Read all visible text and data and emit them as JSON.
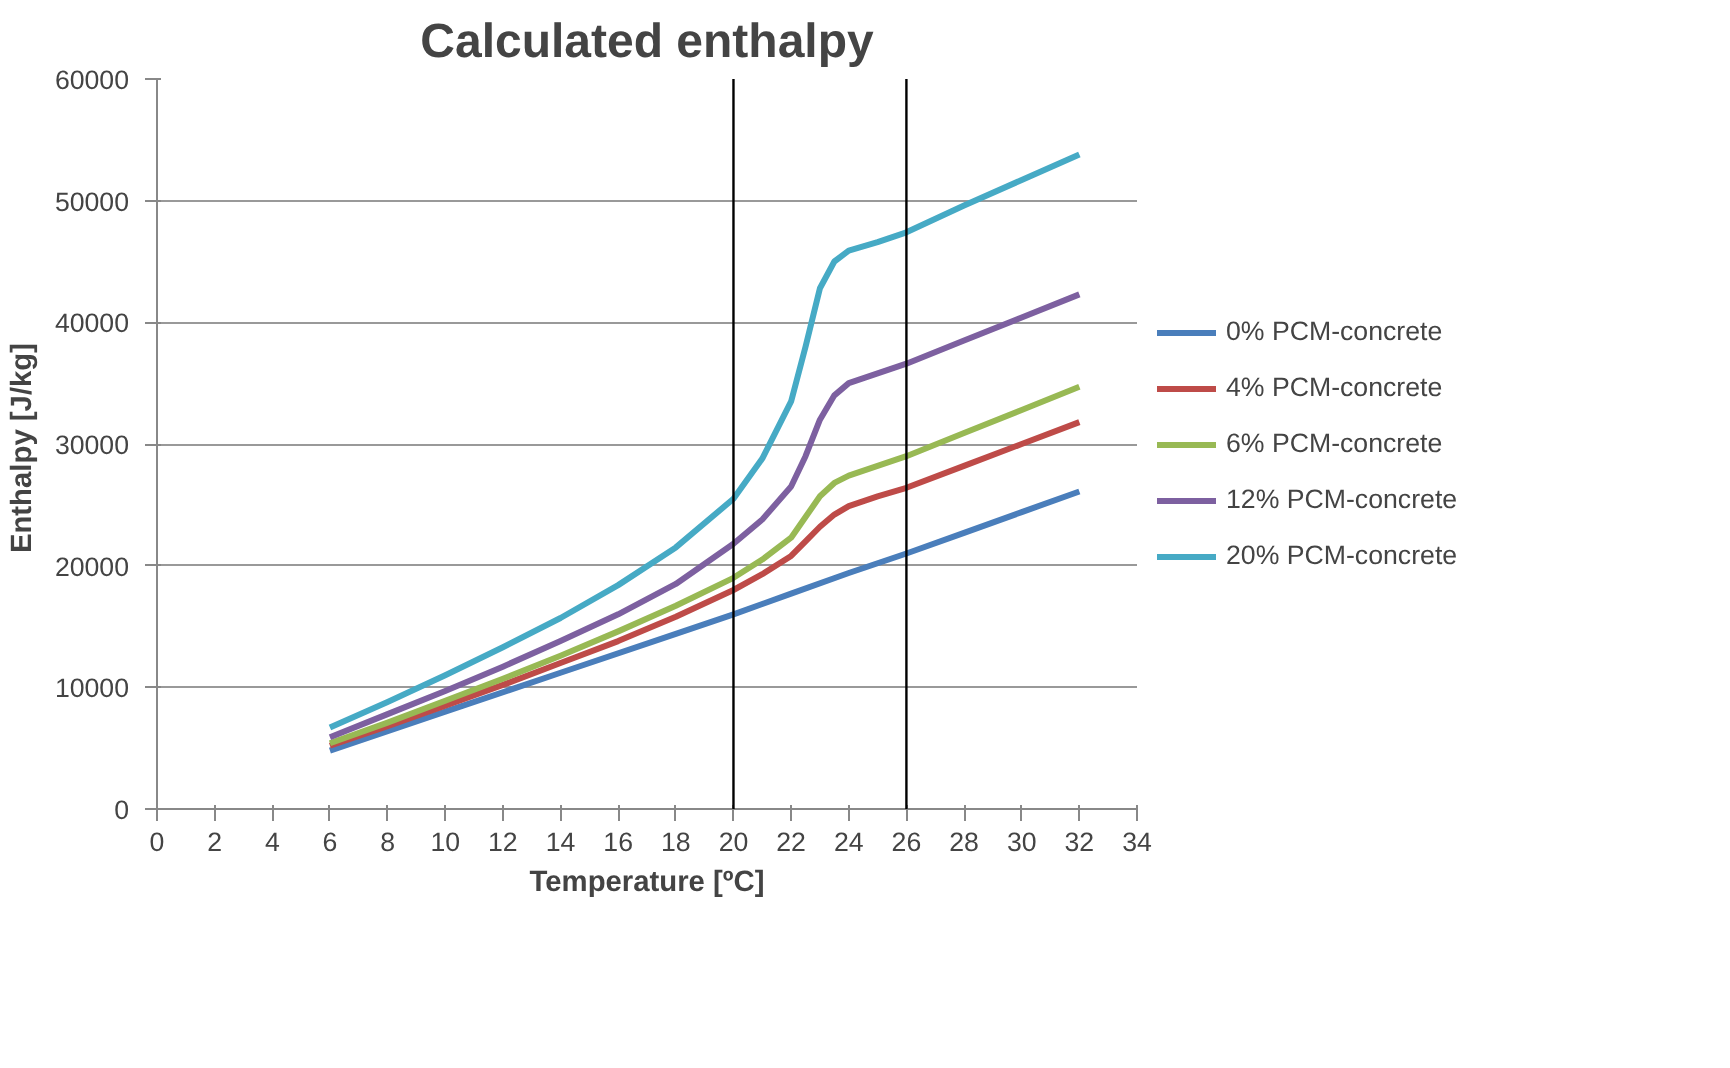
{
  "chart_data": {
    "type": "line",
    "title": "Calculated enthalpy",
    "xlabel": "Temperature [ºC]",
    "ylabel": "Enthalpy  [J/kg]",
    "xlim": [
      0,
      34
    ],
    "xticks": [
      0,
      2,
      4,
      6,
      8,
      10,
      12,
      14,
      16,
      18,
      20,
      22,
      24,
      26,
      28,
      30,
      32,
      34
    ],
    "ylim": [
      0,
      60000
    ],
    "yticks": [
      0,
      10000,
      20000,
      30000,
      40000,
      50000,
      60000
    ],
    "grid": "y",
    "legend": "right",
    "marker": "none",
    "line_style": "solid",
    "ref_lines": [
      {
        "axis": "x",
        "value": 20,
        "color": "#000000"
      },
      {
        "axis": "x",
        "value": 26,
        "color": "#000000"
      }
    ],
    "series": [
      {
        "name": "0% PCM-concrete",
        "color": "#4a7ebb",
        "x": [
          6,
          10,
          14,
          18,
          20,
          22,
          24,
          26,
          28,
          30,
          32
        ],
        "values": [
          4800,
          8000,
          11200,
          14400,
          16000,
          17700,
          19400,
          21000,
          22700,
          24400,
          26100
        ]
      },
      {
        "name": "4% PCM-concrete",
        "color": "#be4b48",
        "x": [
          6,
          8,
          10,
          12,
          14,
          16,
          18,
          20,
          21,
          22,
          22.5,
          23,
          23.5,
          24,
          25,
          26,
          28,
          30,
          32
        ],
        "values": [
          5200,
          6800,
          8500,
          10200,
          12000,
          13800,
          15800,
          18000,
          19300,
          20800,
          22000,
          23200,
          24200,
          24900,
          25700,
          26400,
          28200,
          30000,
          31800
        ]
      },
      {
        "name": "6% PCM-concrete",
        "color": "#98b954",
        "x": [
          6,
          8,
          10,
          12,
          14,
          16,
          18,
          20,
          21,
          22,
          22.5,
          23,
          23.5,
          24,
          25,
          26,
          28,
          30,
          32
        ],
        "values": [
          5400,
          7100,
          8900,
          10700,
          12600,
          14600,
          16700,
          19000,
          20500,
          22300,
          24000,
          25700,
          26800,
          27400,
          28200,
          29000,
          30900,
          32800,
          34700
        ]
      },
      {
        "name": "12% PCM-concrete",
        "color": "#7d60a0",
        "x": [
          6,
          8,
          10,
          12,
          14,
          16,
          18,
          20,
          21,
          22,
          22.5,
          23,
          23.5,
          24,
          25,
          26,
          28,
          30,
          32
        ],
        "values": [
          5900,
          7800,
          9700,
          11700,
          13800,
          16000,
          18500,
          21800,
          23800,
          26500,
          29000,
          32000,
          34000,
          35000,
          35800,
          36600,
          38500,
          40400,
          42300
        ]
      },
      {
        "name": "20% PCM-concrete",
        "color": "#46aac5",
        "x": [
          6,
          8,
          10,
          12,
          14,
          16,
          18,
          20,
          21,
          22,
          22.5,
          23,
          23.5,
          24,
          25,
          26,
          28,
          30,
          32
        ],
        "values": [
          6700,
          8800,
          11000,
          13300,
          15700,
          18400,
          21500,
          25500,
          28800,
          33500,
          38000,
          42800,
          45000,
          45900,
          46600,
          47400,
          49600,
          51700,
          53800
        ]
      }
    ]
  }
}
